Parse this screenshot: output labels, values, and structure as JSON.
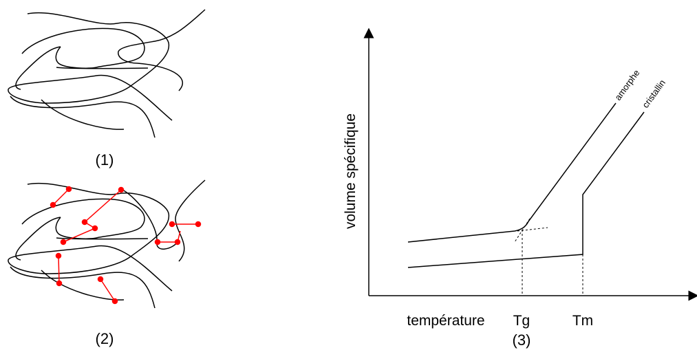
{
  "panels": {
    "panel1_label": "(1)",
    "panel2_label": "(2)",
    "panel3_label": "(3)"
  },
  "graph": {
    "ylabel": "volume spécifique",
    "xlabel": "température",
    "tg_label": "Tg",
    "tm_label": "Tm",
    "curve_amorphous": "amorphe",
    "curve_crystalline": "cristallin"
  },
  "colors": {
    "chain": "#000000",
    "crosslink": "#ff0000"
  }
}
